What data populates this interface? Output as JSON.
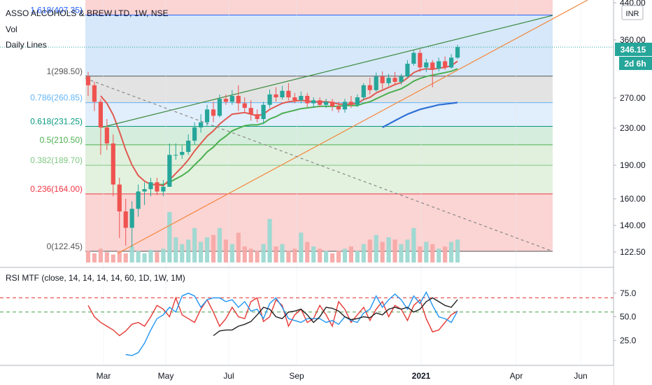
{
  "legend": {
    "title": "ASSO ALCOHOLS & BREW LTD, 1W, NSE",
    "vol": "Vol",
    "daily": "Daily Lines",
    "rsi": "RSI MTF (close, 14, 14, 14, 14, 60, 1D, 1W, 1M)"
  },
  "price_axis": {
    "currency": "INR",
    "last_price": "346.15",
    "countdown": "2d 6h",
    "ticks": [
      "440.00",
      "360.00",
      "270.00",
      "230.00",
      "190.00",
      "160.00",
      "140.00",
      "122.50"
    ]
  },
  "rsi_axis": {
    "ticks": [
      "75.0",
      "50.0",
      "25.0"
    ]
  },
  "time_axis": {
    "labels": [
      "Mar",
      "May",
      "Jul",
      "Sep",
      "2021",
      "Apr",
      "Jun"
    ]
  },
  "fib_levels": [
    {
      "label": "1.618(407.35)",
      "value": 407.35,
      "color": "#2962ff",
      "fill": "#d6e8fa"
    },
    {
      "label": "1(298.50)",
      "value": 298.5,
      "color": "#555555",
      "fill": "#e3e3e3"
    },
    {
      "label": "0.786(260.85)",
      "value": 260.85,
      "color": "#64b5f6",
      "fill": "#e1eefb"
    },
    {
      "label": "0.618(231.25)",
      "value": 231.25,
      "color": "#089981",
      "fill": "#d5eddd"
    },
    {
      "label": "0.5(210.50)",
      "value": 210.5,
      "color": "#4caf50",
      "fill": "#e0f0dd"
    },
    {
      "label": "0.382(189.70)",
      "value": 189.7,
      "color": "#81c784",
      "fill": "#e3f2df"
    },
    {
      "label": "0.236(164.00)",
      "value": 164.0,
      "color": "#f23645",
      "fill": "#fbd4d4"
    },
    {
      "label": "0(122.45)",
      "value": 122.45,
      "color": "#555555",
      "fill": "#fbd4d4"
    }
  ],
  "colors": {
    "up": "#26a69a",
    "down": "#ef5350",
    "ema_red": "#e05a50",
    "ema_green": "#4caf50",
    "sma_blue": "#2f6fd6",
    "trend_green": "#3d8b40",
    "trend_orange": "#f5873c",
    "rsi_black": "#222222",
    "rsi_red": "#e53935",
    "rsi_blue": "#2196f3"
  },
  "chart_data": {
    "type": "candlestick",
    "title": "ASSO ALCOHOLS & BREW LTD, 1W, NSE",
    "price_scale": "log",
    "price_range": [
      118,
      445
    ],
    "rsi_range": [
      0,
      100
    ],
    "candles": [
      {
        "o": 298,
        "h": 305,
        "l": 270,
        "c": 285
      },
      {
        "o": 285,
        "h": 290,
        "l": 250,
        "c": 262
      },
      {
        "o": 262,
        "h": 266,
        "l": 200,
        "c": 230
      },
      {
        "o": 230,
        "h": 240,
        "l": 205,
        "c": 212
      },
      {
        "o": 212,
        "h": 222,
        "l": 162,
        "c": 172
      },
      {
        "o": 172,
        "h": 178,
        "l": 131,
        "c": 150
      },
      {
        "o": 150,
        "h": 160,
        "l": 126,
        "c": 138
      },
      {
        "o": 138,
        "h": 158,
        "l": 125,
        "c": 152
      },
      {
        "o": 152,
        "h": 172,
        "l": 146,
        "c": 166
      },
      {
        "o": 166,
        "h": 174,
        "l": 155,
        "c": 168
      },
      {
        "o": 168,
        "h": 178,
        "l": 162,
        "c": 174
      },
      {
        "o": 174,
        "h": 178,
        "l": 163,
        "c": 166
      },
      {
        "o": 166,
        "h": 176,
        "l": 162,
        "c": 170
      },
      {
        "o": 170,
        "h": 212,
        "l": 170,
        "c": 200
      },
      {
        "o": 200,
        "h": 212,
        "l": 195,
        "c": 200
      },
      {
        "o": 200,
        "h": 210,
        "l": 196,
        "c": 203
      },
      {
        "o": 203,
        "h": 222,
        "l": 200,
        "c": 215
      },
      {
        "o": 215,
        "h": 236,
        "l": 211,
        "c": 230
      },
      {
        "o": 230,
        "h": 246,
        "l": 224,
        "c": 236
      },
      {
        "o": 236,
        "h": 258,
        "l": 232,
        "c": 252
      },
      {
        "o": 252,
        "h": 262,
        "l": 236,
        "c": 244
      },
      {
        "o": 244,
        "h": 272,
        "l": 242,
        "c": 266
      },
      {
        "o": 266,
        "h": 272,
        "l": 258,
        "c": 262
      },
      {
        "o": 262,
        "h": 278,
        "l": 258,
        "c": 270
      },
      {
        "o": 270,
        "h": 285,
        "l": 250,
        "c": 260
      },
      {
        "o": 260,
        "h": 268,
        "l": 249,
        "c": 254
      },
      {
        "o": 254,
        "h": 264,
        "l": 238,
        "c": 246
      },
      {
        "o": 246,
        "h": 252,
        "l": 236,
        "c": 240
      },
      {
        "o": 240,
        "h": 262,
        "l": 234,
        "c": 258
      },
      {
        "o": 258,
        "h": 279,
        "l": 254,
        "c": 272
      },
      {
        "o": 272,
        "h": 282,
        "l": 262,
        "c": 268
      },
      {
        "o": 268,
        "h": 284,
        "l": 265,
        "c": 277
      },
      {
        "o": 277,
        "h": 288,
        "l": 264,
        "c": 268
      },
      {
        "o": 268,
        "h": 274,
        "l": 260,
        "c": 264
      },
      {
        "o": 264,
        "h": 276,
        "l": 260,
        "c": 270
      },
      {
        "o": 270,
        "h": 274,
        "l": 255,
        "c": 260
      },
      {
        "o": 260,
        "h": 268,
        "l": 254,
        "c": 264
      },
      {
        "o": 264,
        "h": 268,
        "l": 255,
        "c": 258
      },
      {
        "o": 258,
        "h": 266,
        "l": 254,
        "c": 262
      },
      {
        "o": 262,
        "h": 266,
        "l": 250,
        "c": 256
      },
      {
        "o": 256,
        "h": 262,
        "l": 248,
        "c": 252
      },
      {
        "o": 252,
        "h": 266,
        "l": 248,
        "c": 262
      },
      {
        "o": 262,
        "h": 270,
        "l": 254,
        "c": 258
      },
      {
        "o": 258,
        "h": 272,
        "l": 255,
        "c": 268
      },
      {
        "o": 268,
        "h": 288,
        "l": 264,
        "c": 285
      },
      {
        "o": 285,
        "h": 296,
        "l": 272,
        "c": 278
      },
      {
        "o": 278,
        "h": 304,
        "l": 276,
        "c": 298
      },
      {
        "o": 298,
        "h": 306,
        "l": 280,
        "c": 288
      },
      {
        "o": 288,
        "h": 302,
        "l": 284,
        "c": 296
      },
      {
        "o": 296,
        "h": 305,
        "l": 285,
        "c": 290
      },
      {
        "o": 290,
        "h": 302,
        "l": 286,
        "c": 298
      },
      {
        "o": 298,
        "h": 324,
        "l": 296,
        "c": 318
      },
      {
        "o": 318,
        "h": 340,
        "l": 315,
        "c": 336
      },
      {
        "o": 336,
        "h": 342,
        "l": 305,
        "c": 312
      },
      {
        "o": 312,
        "h": 326,
        "l": 305,
        "c": 320
      },
      {
        "o": 320,
        "h": 324,
        "l": 282,
        "c": 310
      },
      {
        "o": 310,
        "h": 328,
        "l": 306,
        "c": 322
      },
      {
        "o": 322,
        "h": 330,
        "l": 308,
        "c": 312
      },
      {
        "o": 312,
        "h": 334,
        "l": 310,
        "c": 328
      },
      {
        "o": 328,
        "h": 350,
        "l": 326,
        "c": 346.15
      }
    ],
    "volume": [
      10,
      8,
      12,
      9,
      7,
      10,
      8,
      14,
      10,
      8,
      11,
      9,
      12,
      44,
      22,
      16,
      20,
      30,
      18,
      22,
      24,
      30,
      20,
      16,
      26,
      14,
      12,
      10,
      16,
      38,
      14,
      16,
      10,
      12,
      26,
      18,
      14,
      12,
      10,
      8,
      10,
      12,
      14,
      10,
      16,
      20,
      24,
      18,
      22,
      20,
      16,
      20,
      30,
      14,
      18,
      16,
      12,
      14,
      18,
      20
    ],
    "ema_fast": [
      null,
      null,
      270,
      260,
      245,
      225,
      205,
      190,
      180,
      175,
      172,
      172,
      171,
      176,
      182,
      188,
      195,
      204,
      212,
      220,
      226,
      234,
      240,
      246,
      247,
      248,
      246,
      244,
      246,
      252,
      256,
      260,
      262,
      263,
      264,
      263,
      262,
      262,
      262,
      261,
      259,
      259,
      259,
      260,
      265,
      268,
      274,
      278,
      282,
      286,
      289,
      296,
      304,
      308,
      310,
      309,
      311,
      312,
      315,
      322
    ],
    "ema_slow": [
      null,
      null,
      null,
      null,
      null,
      null,
      null,
      null,
      null,
      null,
      172,
      172,
      172,
      174,
      177,
      180,
      184,
      190,
      196,
      203,
      208,
      215,
      220,
      226,
      229,
      232,
      233,
      233,
      235,
      240,
      243,
      247,
      249,
      251,
      253,
      254,
      255,
      256,
      256,
      256,
      256,
      257,
      257,
      257,
      260,
      262,
      266,
      270,
      274,
      277,
      280,
      285,
      291,
      295,
      298,
      300,
      302,
      304,
      306,
      310
    ],
    "sma_long": [
      null,
      null,
      null,
      null,
      null,
      null,
      null,
      null,
      null,
      null,
      null,
      null,
      null,
      null,
      null,
      null,
      null,
      null,
      null,
      null,
      null,
      null,
      null,
      null,
      null,
      null,
      null,
      null,
      null,
      null,
      null,
      null,
      null,
      null,
      null,
      null,
      null,
      null,
      null,
      null,
      null,
      null,
      null,
      null,
      null,
      null,
      null,
      230,
      234,
      238,
      242,
      246,
      249,
      252,
      254,
      256,
      258,
      259,
      260,
      261
    ],
    "rsi_black": [
      null,
      null,
      null,
      null,
      null,
      null,
      null,
      null,
      null,
      null,
      null,
      null,
      null,
      null,
      null,
      null,
      null,
      null,
      null,
      null,
      30,
      35,
      36,
      36,
      40,
      42,
      45,
      52,
      60,
      58,
      50,
      48,
      55,
      56,
      58,
      52,
      44,
      50,
      60,
      59,
      56,
      50,
      47,
      48,
      50,
      49,
      54,
      52,
      58,
      60,
      58,
      60,
      55,
      58,
      66,
      70,
      66,
      62,
      60,
      68
    ],
    "rsi_red": [
      62,
      50,
      44,
      40,
      36,
      30,
      35,
      42,
      44,
      40,
      50,
      62,
      58,
      50,
      70,
      52,
      48,
      44,
      58,
      68,
      55,
      40,
      48,
      60,
      50,
      48,
      66,
      70,
      45,
      50,
      68,
      62,
      40,
      52,
      58,
      44,
      48,
      62,
      52,
      40,
      66,
      58,
      44,
      52,
      60,
      46,
      58,
      66,
      50,
      62,
      58,
      46,
      62,
      68,
      48,
      34,
      36,
      44,
      52,
      56
    ],
    "rsi_blue": [
      null,
      null,
      null,
      null,
      null,
      null,
      10,
      9,
      12,
      22,
      36,
      48,
      52,
      60,
      55,
      72,
      75,
      72,
      60,
      68,
      70,
      70,
      66,
      68,
      60,
      66,
      56,
      58,
      48,
      64,
      70,
      60,
      48,
      46,
      44,
      48,
      48,
      48,
      44,
      46,
      42,
      50,
      46,
      44,
      54,
      58,
      72,
      60,
      68,
      74,
      68,
      58,
      72,
      64,
      76,
      62,
      50,
      48,
      44,
      56
    ]
  }
}
